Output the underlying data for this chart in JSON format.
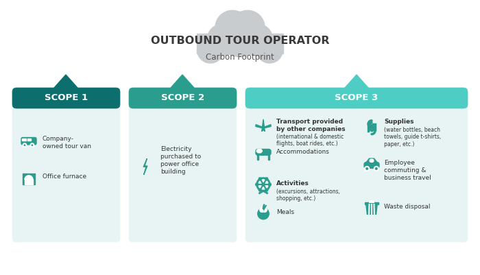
{
  "title": "OUTBOUND TOUR OPERATOR",
  "subtitle": "Carbon Footprint",
  "cloud_color": "#c8cccf",
  "scope1_header_color": "#0d6e6e",
  "scope2_header_color": "#2a9d8f",
  "scope3_header_color": "#4ecdc4",
  "scope_bg_color": "#e8f4f4",
  "scope1_label": "SCOPE 1",
  "scope2_label": "SCOPE 2",
  "scope3_label": "SCOPE 3",
  "icon_color": "#2a9d8f",
  "text_color": "#333333",
  "header_text_color": "#ffffff",
  "bg_color": "#ffffff"
}
